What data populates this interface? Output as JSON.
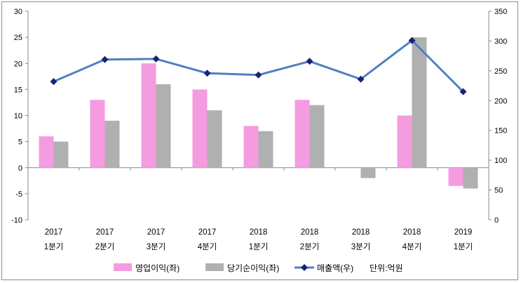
{
  "chart_data": {
    "type": "bar",
    "title": "",
    "xlabel": "",
    "ylabel": "",
    "categories": [
      {
        "year": "2017",
        "quarter": "1분기"
      },
      {
        "year": "2017",
        "quarter": "2분기"
      },
      {
        "year": "2017",
        "quarter": "3분기"
      },
      {
        "year": "2017",
        "quarter": "4분기"
      },
      {
        "year": "2018",
        "quarter": "1분기"
      },
      {
        "year": "2018",
        "quarter": "2분기"
      },
      {
        "year": "2018",
        "quarter": "3분기"
      },
      {
        "year": "2018",
        "quarter": "4분기"
      },
      {
        "year": "2019",
        "quarter": "1분기"
      }
    ],
    "series": [
      {
        "name": "영업이익(좌)",
        "type": "bar",
        "axis": "left",
        "color": "#f59be0",
        "values": [
          6,
          13,
          20,
          15,
          8,
          13,
          0,
          10,
          -3.5
        ]
      },
      {
        "name": "당기순이익(좌)",
        "type": "bar",
        "axis": "left",
        "color": "#b0b0b0",
        "values": [
          5,
          9,
          16,
          11,
          7,
          12,
          -2,
          25,
          -4
        ]
      },
      {
        "name": "매출액(우)",
        "type": "line",
        "axis": "right",
        "color": "#4f81bd",
        "marker_color": "#1f1f7a",
        "values": [
          232,
          269,
          270,
          246,
          243,
          266,
          236,
          301,
          215
        ]
      }
    ],
    "y_left": {
      "min": -10,
      "max": 30,
      "step": 5,
      "ticks": [
        "-10",
        "-5",
        "0",
        "5",
        "10",
        "15",
        "20",
        "25",
        "30"
      ]
    },
    "y_right": {
      "min": 0,
      "max": 350,
      "step": 50,
      "ticks": [
        "0",
        "50",
        "100",
        "150",
        "200",
        "250",
        "300",
        "350"
      ]
    },
    "unit_note": "단위:억원",
    "legend_position": "bottom"
  }
}
